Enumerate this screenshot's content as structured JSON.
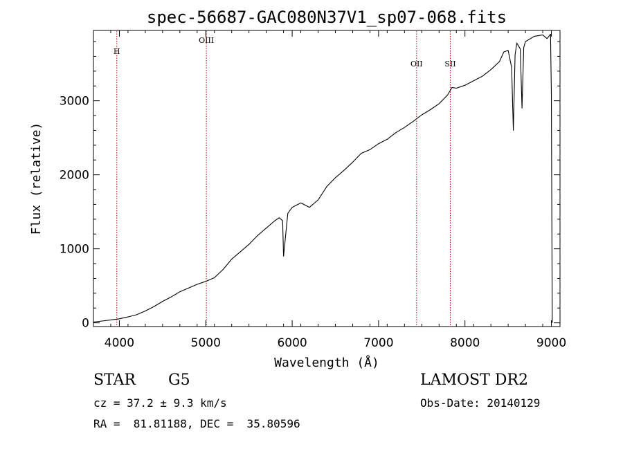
{
  "chart_data": {
    "type": "line",
    "title": "spec-56687-GAC080N37V1_sp07-068.fits",
    "xlabel": "Wavelength (Å)",
    "ylabel": "Flux (relative)",
    "xlim": [
      3700,
      9100
    ],
    "ylim": [
      -50,
      3950
    ],
    "xticks": [
      4000,
      5000,
      6000,
      7000,
      8000,
      9000
    ],
    "yticks": [
      0,
      1000,
      2000,
      3000
    ],
    "grid": false,
    "line_color": "#000000",
    "series": [
      {
        "x": [
          3700,
          3800,
          3900,
          4000,
          4100,
          4200,
          4300,
          4400,
          4500,
          4600,
          4700,
          4800,
          4900,
          5000,
          5100,
          5200,
          5300,
          5400,
          5500,
          5600,
          5700,
          5800,
          5850,
          5890,
          5900,
          5950,
          6000,
          6100,
          6200,
          6300,
          6400,
          6500,
          6600,
          6700,
          6800,
          6900,
          7000,
          7100,
          7200,
          7300,
          7400,
          7500,
          7600,
          7700,
          7800,
          7850,
          7900,
          8000,
          8100,
          8200,
          8300,
          8400,
          8450,
          8500,
          8540,
          8560,
          8580,
          8600,
          8640,
          8660,
          8680,
          8700,
          8800,
          8900,
          8950,
          8990,
          9000,
          9010
        ],
        "y": [
          10,
          25,
          40,
          55,
          80,
          110,
          160,
          220,
          290,
          350,
          420,
          470,
          520,
          560,
          610,
          720,
          860,
          960,
          1060,
          1180,
          1280,
          1380,
          1420,
          1380,
          900,
          1480,
          1560,
          1620,
          1560,
          1660,
          1840,
          1960,
          2060,
          2170,
          2290,
          2340,
          2420,
          2480,
          2570,
          2640,
          2720,
          2810,
          2880,
          2960,
          3080,
          3180,
          3170,
          3210,
          3270,
          3330,
          3420,
          3530,
          3660,
          3680,
          3450,
          2600,
          3620,
          3780,
          3700,
          2900,
          3720,
          3800,
          3870,
          3890,
          3840,
          3900,
          3100,
          0
        ]
      }
    ],
    "lines": [
      {
        "label": "H",
        "x": 3970,
        "color": "#c00000"
      },
      {
        "label": "OIII",
        "x": 5007,
        "color": "#c00000"
      },
      {
        "label": "OII",
        "x": 7440,
        "color": "#c00000"
      },
      {
        "label": "SII",
        "x": 7830,
        "color": "#c00000"
      }
    ]
  },
  "info": {
    "class_label": "STAR",
    "subclass": "G5",
    "survey": "LAMOST DR2",
    "cz_text": "cz = 37.2 ± 9.3 km/s",
    "obs_date": "Obs-Date: 20140129",
    "radec_text": "RA =  81.81188, DEC =  35.80596"
  }
}
